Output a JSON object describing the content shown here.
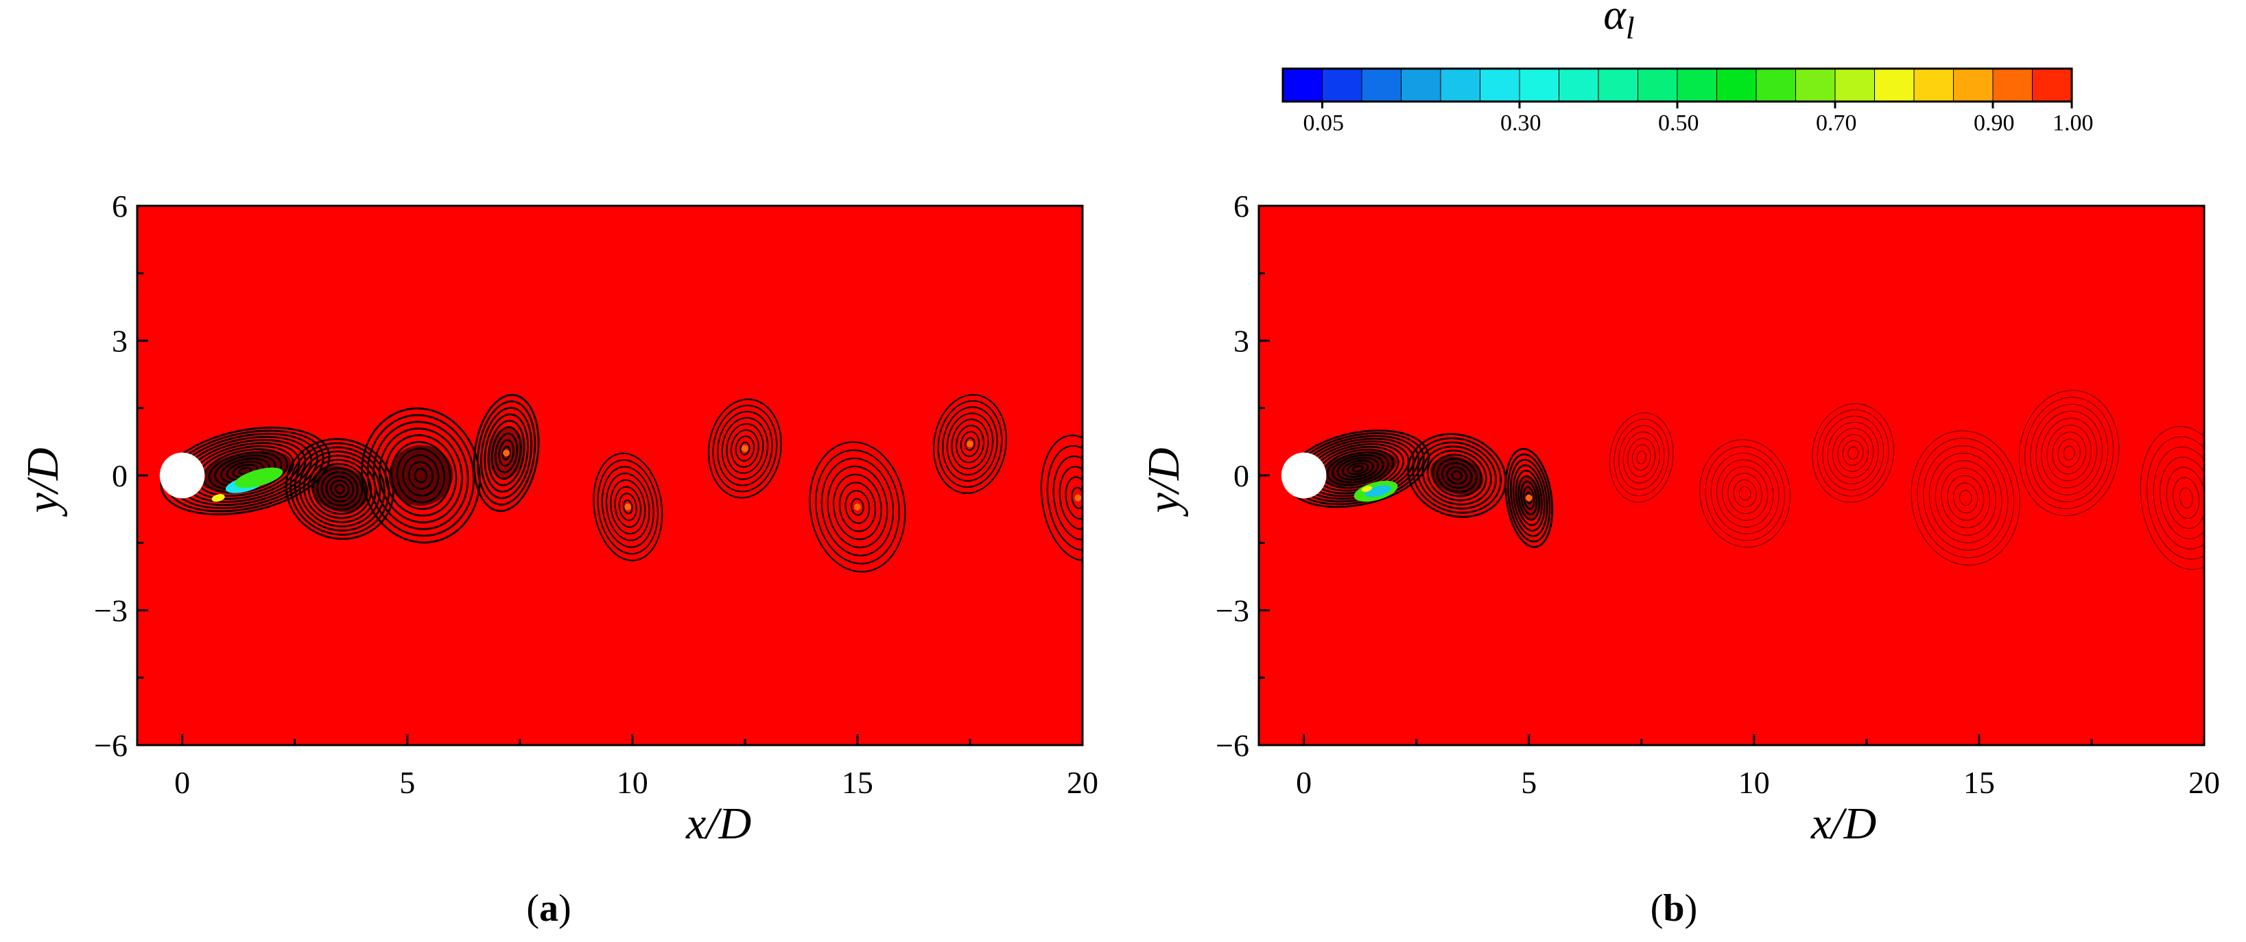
{
  "chart_data": {
    "type": "heatmap",
    "colorbar": {
      "title_main": "α",
      "title_sub": "l",
      "range": [
        0.0,
        1.0
      ],
      "n_levels": 20,
      "colors": [
        "#0000ff",
        "#0a3df2",
        "#0f6fe8",
        "#129de4",
        "#16c4ec",
        "#19e6ef",
        "#18f5e2",
        "#12f5c6",
        "#0cf4a4",
        "#06ef7a",
        "#02e94a",
        "#00e61c",
        "#3bea14",
        "#7cf015",
        "#b7f616",
        "#f2f716",
        "#ffd20e",
        "#ffa80a",
        "#ff6a05",
        "#ff2a01"
      ],
      "tick_values": [
        0.05,
        0.3,
        0.5,
        0.7,
        0.9,
        1.0
      ],
      "tick_labels": [
        "0.05",
        "0.30",
        "0.50",
        "0.70",
        "0.90",
        "1.00"
      ]
    },
    "panels": [
      {
        "label": "a",
        "field_color": "#ff0000",
        "x_range": [
          -1,
          20
        ],
        "y_range": [
          -6,
          6
        ],
        "x_ticks": [
          0,
          5,
          10,
          15,
          20
        ],
        "x_tick_labels": [
          "0",
          "5",
          "10",
          "15",
          "20"
        ],
        "y_ticks": [
          6,
          3,
          0,
          -3,
          -6
        ],
        "y_tick_labels": [
          "6",
          "3",
          "0",
          "−3",
          "−6"
        ],
        "xlabel_main": "x/",
        "xlabel_tail": "D",
        "ylabel_main": "y/",
        "ylabel_tail": "D",
        "cylinder": {
          "x": 0,
          "y": 0,
          "diameter": 1
        },
        "vortices": [
          {
            "x": 1.4,
            "y": 0.1,
            "kind": "wake",
            "rings": 14,
            "rx": 1.9,
            "ry": 0.9
          },
          {
            "x": 3.5,
            "y": -0.3,
            "kind": "wake",
            "rings": 12,
            "rx": 1.2,
            "ry": 1.1
          },
          {
            "x": 5.3,
            "y": 0.0,
            "kind": "wake",
            "rings": 10,
            "rx": 1.3,
            "ry": 1.5
          },
          {
            "x": 7.2,
            "y": 0.5,
            "kind": "dense",
            "rings": 9,
            "rx": 0.7,
            "ry": 1.3
          },
          {
            "x": 9.9,
            "y": -0.7,
            "kind": "ring",
            "rings": 8,
            "rx": 0.75,
            "ry": 1.2
          },
          {
            "x": 12.5,
            "y": 0.6,
            "kind": "ring",
            "rings": 8,
            "rx": 0.8,
            "ry": 1.1
          },
          {
            "x": 15.0,
            "y": -0.7,
            "kind": "ring",
            "rings": 8,
            "rx": 1.05,
            "ry": 1.45
          },
          {
            "x": 17.5,
            "y": 0.7,
            "kind": "ring",
            "rings": 8,
            "rx": 0.8,
            "ry": 1.1
          },
          {
            "x": 19.9,
            "y": -0.5,
            "kind": "ring",
            "rings": 6,
            "rx": 0.8,
            "ry": 1.4
          }
        ],
        "cavity_patches": [
          {
            "x": 1.4,
            "y": -0.2,
            "rx": 0.45,
            "ry": 0.16,
            "color": "#19e6ef"
          },
          {
            "x": 1.7,
            "y": -0.05,
            "rx": 0.55,
            "ry": 0.18,
            "color": "#3bea14"
          },
          {
            "x": 0.8,
            "y": -0.5,
            "rx": 0.15,
            "ry": 0.08,
            "color": "#f2f716"
          }
        ]
      },
      {
        "label": "b",
        "field_color": "#ff0000",
        "x_range": [
          -1,
          20
        ],
        "y_range": [
          -6,
          6
        ],
        "x_ticks": [
          0,
          5,
          10,
          15,
          20
        ],
        "x_tick_labels": [
          "0",
          "5",
          "10",
          "15",
          "20"
        ],
        "y_ticks": [
          6,
          3,
          0,
          -3,
          -6
        ],
        "y_tick_labels": [
          "6",
          "3",
          "0",
          "−3",
          "−6"
        ],
        "xlabel_main": "x/",
        "xlabel_tail": "D",
        "ylabel_main": "y/",
        "ylabel_tail": "D",
        "cylinder": {
          "x": 0,
          "y": 0,
          "diameter": 1
        },
        "vortices": [
          {
            "x": 1.2,
            "y": 0.15,
            "kind": "wake",
            "rings": 14,
            "rx": 1.6,
            "ry": 0.8
          },
          {
            "x": 3.4,
            "y": 0.0,
            "kind": "wake",
            "rings": 10,
            "rx": 1.1,
            "ry": 0.9
          },
          {
            "x": 5.0,
            "y": -0.5,
            "kind": "dense",
            "rings": 9,
            "rx": 0.5,
            "ry": 1.1
          },
          {
            "x": 7.5,
            "y": 0.4,
            "kind": "faint",
            "rings": 7,
            "rx": 0.7,
            "ry": 1.0
          },
          {
            "x": 9.8,
            "y": -0.4,
            "kind": "faint",
            "rings": 8,
            "rx": 1.0,
            "ry": 1.2
          },
          {
            "x": 12.2,
            "y": 0.5,
            "kind": "faint",
            "rings": 8,
            "rx": 0.9,
            "ry": 1.1
          },
          {
            "x": 14.7,
            "y": -0.5,
            "kind": "faint",
            "rings": 9,
            "rx": 1.2,
            "ry": 1.5
          },
          {
            "x": 17.0,
            "y": 0.5,
            "kind": "faint",
            "rings": 9,
            "rx": 1.1,
            "ry": 1.4
          },
          {
            "x": 19.6,
            "y": -0.5,
            "kind": "faint",
            "rings": 7,
            "rx": 1.0,
            "ry": 1.6
          }
        ],
        "cavity_patches": [
          {
            "x": 1.6,
            "y": -0.35,
            "rx": 0.5,
            "ry": 0.2,
            "color": "#3bea14"
          },
          {
            "x": 1.65,
            "y": -0.35,
            "rx": 0.3,
            "ry": 0.11,
            "color": "#16c4ec"
          },
          {
            "x": 1.4,
            "y": -0.3,
            "rx": 0.12,
            "ry": 0.06,
            "color": "#f2f716"
          }
        ]
      }
    ]
  }
}
